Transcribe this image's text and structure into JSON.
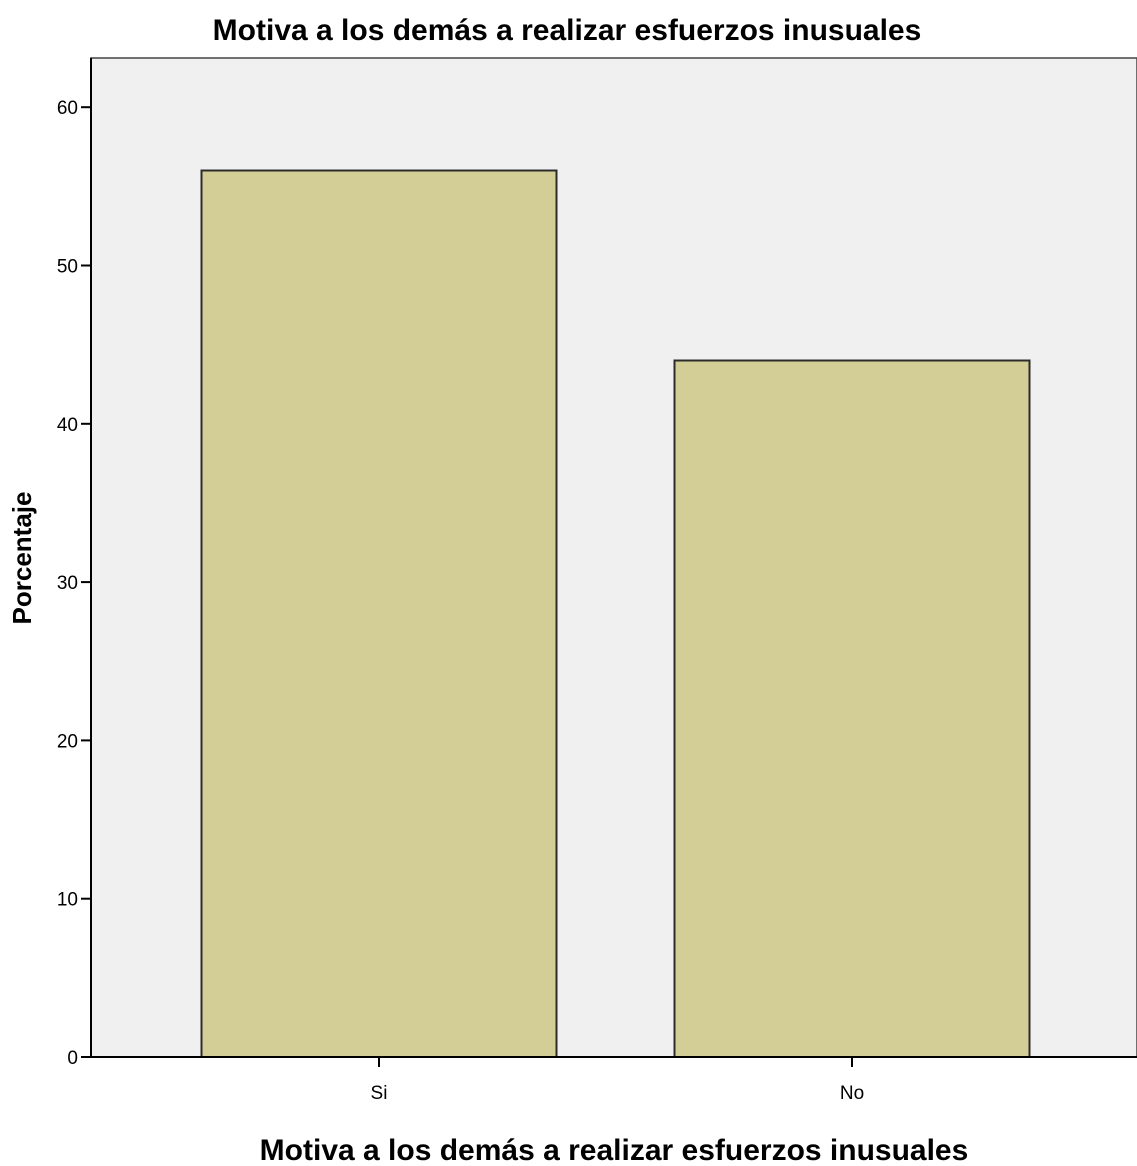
{
  "chart_data": {
    "type": "bar",
    "title": "Motiva a los demás a realizar esfuerzos inusuales",
    "xlabel": "Motiva a los demás a realizar esfuerzos inusuales",
    "ylabel": "Porcentaje",
    "categories": [
      "Si",
      "No"
    ],
    "values": [
      56,
      44
    ],
    "ylim": [
      0,
      63
    ],
    "yticks": [
      0,
      10,
      20,
      30,
      40,
      50,
      60
    ],
    "grid": false,
    "colors": {
      "bar_fill": "#d3cd96",
      "bar_stroke": "#2b2b2b",
      "plot_background": "#f0f0f0",
      "axis": "#000000"
    }
  }
}
